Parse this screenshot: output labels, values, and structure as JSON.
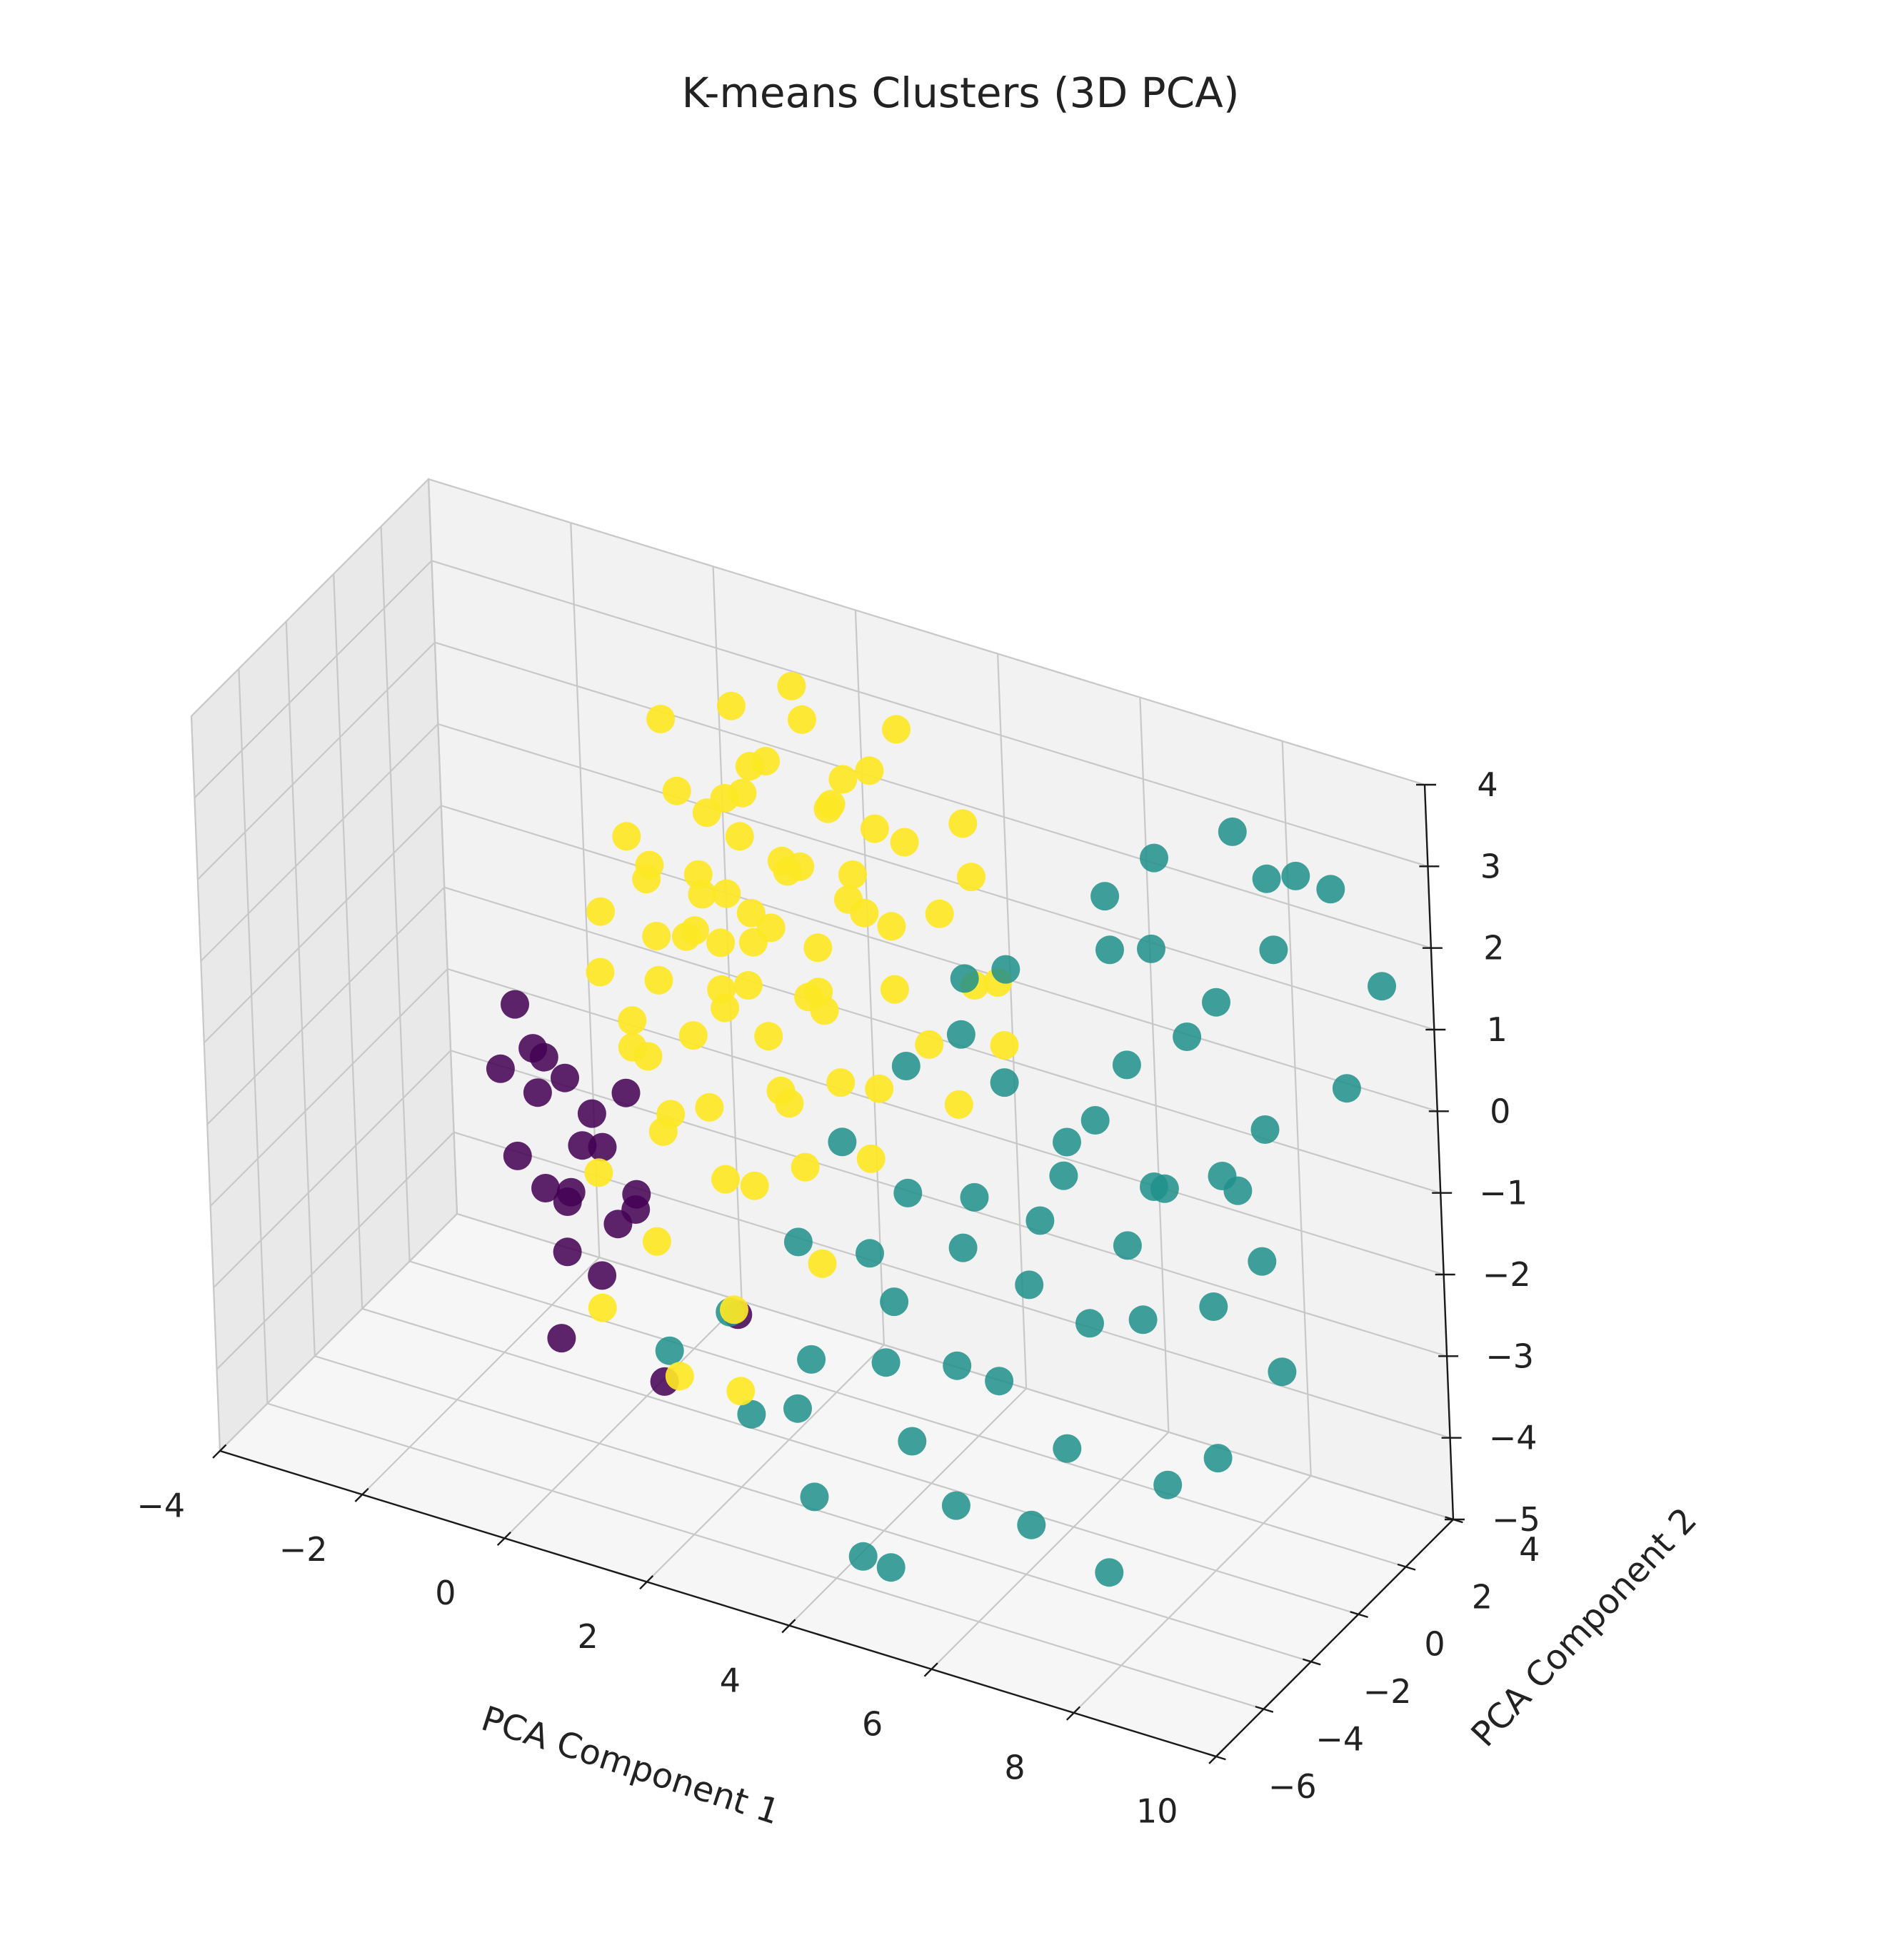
{
  "chart_data": {
    "type": "scatter",
    "projection": "3d",
    "title": "K-means Clusters (3D PCA)",
    "xlabel": "PCA Component 1",
    "ylabel": "PCA Component 2",
    "zlabel": "",
    "xlim": [
      -4,
      10
    ],
    "ylim": [
      -6,
      4
    ],
    "zlim": [
      -5,
      4
    ],
    "xticks": [
      -4,
      -2,
      0,
      2,
      4,
      6,
      8,
      10
    ],
    "yticks": [
      -6,
      -4,
      -2,
      0,
      2,
      4
    ],
    "zticks": [
      -5,
      -4,
      -3,
      -2,
      -1,
      0,
      1,
      2,
      3,
      4
    ],
    "grid": true,
    "legend": "none",
    "colormap": "viridis",
    "series": [
      {
        "color": "#440154",
        "points": [
          [
            -1.8,
            0.4,
            -0.8
          ],
          [
            -1.5,
            0.2,
            -1.2
          ],
          [
            -1.2,
            0.6,
            -1.6
          ],
          [
            -1.6,
            -0.3,
            -2.4
          ],
          [
            -1.0,
            0.1,
            -2.8
          ],
          [
            -0.8,
            0.5,
            -1.9
          ],
          [
            -1.3,
            0.8,
            -3.2
          ],
          [
            -0.5,
            -0.2,
            -3.6
          ],
          [
            -1.7,
            0.9,
            -2.0
          ],
          [
            -1.1,
            -0.5,
            -1.0
          ],
          [
            -0.6,
            0.3,
            -2.2
          ],
          [
            -1.4,
            1.0,
            -3.9
          ],
          [
            -0.3,
            0.7,
            -3.0
          ],
          [
            -0.9,
            -0.8,
            -4.3
          ],
          [
            -1.9,
            0.0,
            -1.5
          ],
          [
            -0.2,
            0.2,
            -1.4
          ],
          [
            -1.2,
            1.2,
            -2.6
          ],
          [
            0.4,
            -0.4,
            -4.6
          ],
          [
            -0.7,
            1.1,
            -3.4
          ],
          [
            1.2,
            0.4,
            -3.8
          ],
          [
            -1.5,
            0.5,
            -3.0
          ],
          [
            0.0,
            -0.1,
            -2.5
          ]
        ]
      },
      {
        "color": "#21918c",
        "points": [
          [
            6.6,
            2.6,
            2.6
          ],
          [
            7.8,
            2.4,
            3.3
          ],
          [
            8.4,
            2.0,
            3.0
          ],
          [
            6.3,
            1.4,
            2.4
          ],
          [
            9.2,
            2.3,
            3.0
          ],
          [
            8.6,
            1.6,
            2.3
          ],
          [
            9.7,
            2.8,
            1.8
          ],
          [
            7.6,
            0.8,
            1.2
          ],
          [
            8.8,
            0.4,
            0.5
          ],
          [
            9.6,
            1.5,
            0.9
          ],
          [
            5.4,
            -0.4,
            0.4
          ],
          [
            6.8,
            0.6,
            0.7
          ],
          [
            7.4,
            -0.2,
            -0.4
          ],
          [
            8.2,
            0.3,
            -0.2
          ],
          [
            9.0,
            -0.5,
            -0.8
          ],
          [
            4.6,
            0.2,
            0.6
          ],
          [
            5.8,
            0.9,
            -0.6
          ],
          [
            6.4,
            -1.0,
            -0.3
          ],
          [
            7.2,
            -0.8,
            -1.0
          ],
          [
            8.6,
            -1.4,
            -1.2
          ],
          [
            4.0,
            -0.5,
            -1.3
          ],
          [
            5.0,
            -1.2,
            -1.5
          ],
          [
            5.9,
            -0.6,
            -1.1
          ],
          [
            6.9,
            -1.6,
            -1.8
          ],
          [
            7.8,
            -2.0,
            -1.4
          ],
          [
            9.4,
            -1.0,
            -1.9
          ],
          [
            4.2,
            -1.8,
            -2.2
          ],
          [
            5.2,
            -2.2,
            -2.6
          ],
          [
            6.0,
            -2.8,
            -2.4
          ],
          [
            7.0,
            -3.0,
            -2.9
          ],
          [
            8.2,
            -2.4,
            -3.2
          ],
          [
            9.0,
            -2.6,
            -2.6
          ],
          [
            3.6,
            -1.0,
            -2.0
          ],
          [
            4.8,
            -3.0,
            -3.4
          ],
          [
            5.6,
            -3.6,
            -3.8
          ],
          [
            6.8,
            -4.0,
            -3.6
          ],
          [
            3.2,
            -2.4,
            -3.0
          ],
          [
            2.6,
            -3.2,
            -3.6
          ],
          [
            3.8,
            -4.2,
            -4.0
          ],
          [
            4.6,
            -4.6,
            -4.4
          ],
          [
            5.2,
            -5.2,
            -4.2
          ],
          [
            7.6,
            -3.2,
            -4.2
          ],
          [
            2.0,
            -2.2,
            -2.8
          ],
          [
            1.4,
            -3.0,
            -3.2
          ],
          [
            6.2,
            1.8,
            1.6
          ],
          [
            7.0,
            1.2,
            2.0
          ],
          [
            5.2,
            0.4,
            1.5
          ],
          [
            4.4,
            1.0,
            1.0
          ],
          [
            3.8,
            0.2,
            0.0
          ],
          [
            6.6,
            -0.2,
            0.2
          ],
          [
            7.9,
            -1.2,
            0.0
          ],
          [
            8.8,
            -0.8,
            0.1
          ],
          [
            3.2,
            -0.8,
            -0.8
          ],
          [
            2.8,
            -1.6,
            -1.9
          ],
          [
            5.4,
            -1.8,
            -0.6
          ],
          [
            6.2,
            -2.0,
            -1.4
          ],
          [
            4.4,
            -2.8,
            -2.6
          ],
          [
            3.4,
            -3.6,
            -3.2
          ],
          [
            8.0,
            0.9,
            1.7
          ],
          [
            8.5,
            2.9,
            2.8
          ]
        ]
      },
      {
        "color": "#fde725",
        "points": [
          [
            0.6,
            1.2,
            1.2
          ],
          [
            1.0,
            1.8,
            1.6
          ],
          [
            1.4,
            1.0,
            1.0
          ],
          [
            0.2,
            1.6,
            2.0
          ],
          [
            1.8,
            1.4,
            1.5
          ],
          [
            2.2,
            2.0,
            2.2
          ],
          [
            0.8,
            0.4,
            0.8
          ],
          [
            1.6,
            0.2,
            0.4
          ],
          [
            2.4,
            0.8,
            0.9
          ],
          [
            0.0,
            0.8,
            1.1
          ],
          [
            1.2,
            2.4,
            2.4
          ],
          [
            2.8,
            1.6,
            1.2
          ],
          [
            3.2,
            2.2,
            2.0
          ],
          [
            0.4,
            0.0,
            0.2
          ],
          [
            1.0,
            -0.4,
            -0.2
          ],
          [
            2.0,
            -0.2,
            0.0
          ],
          [
            2.6,
            0.4,
            0.3
          ],
          [
            3.4,
            1.0,
            0.6
          ],
          [
            3.8,
            1.8,
            1.4
          ],
          [
            -0.4,
            1.2,
            1.4
          ],
          [
            -0.6,
            0.6,
            0.6
          ],
          [
            0.2,
            -0.6,
            -0.5
          ],
          [
            1.4,
            -1.0,
            -0.8
          ],
          [
            2.4,
            -0.6,
            -0.6
          ],
          [
            3.0,
            -0.2,
            -0.3
          ],
          [
            4.0,
            0.6,
            0.2
          ],
          [
            4.4,
            1.4,
            0.8
          ],
          [
            0.8,
            -1.2,
            -1.2
          ],
          [
            1.8,
            -1.6,
            -1.4
          ],
          [
            2.8,
            -1.2,
            -1.1
          ],
          [
            3.6,
            -0.8,
            -0.9
          ],
          [
            0.0,
            -1.6,
            -1.8
          ],
          [
            1.0,
            -2.2,
            -2.2
          ],
          [
            2.2,
            -2.6,
            -2.6
          ],
          [
            3.2,
            -1.8,
            -2.0
          ],
          [
            0.4,
            -2.8,
            -3.0
          ],
          [
            1.6,
            -3.2,
            -3.4
          ],
          [
            2.6,
            -3.6,
            -3.2
          ],
          [
            -0.2,
            2.2,
            2.6
          ],
          [
            1.6,
            2.8,
            2.9
          ],
          [
            2.6,
            2.6,
            2.6
          ],
          [
            0.6,
            2.8,
            2.8
          ],
          [
            1.2,
            0.6,
            1.3
          ],
          [
            1.9,
            0.9,
            1.8
          ],
          [
            0.5,
            0.9,
            0.5
          ],
          [
            1.5,
            1.5,
            0.7
          ],
          [
            2.1,
            1.2,
            0.1
          ],
          [
            0.9,
            1.1,
            -0.1
          ],
          [
            1.3,
            0.0,
            0.9
          ],
          [
            2.9,
            0.9,
            1.9
          ],
          [
            3.6,
            0.4,
            1.6
          ],
          [
            0.1,
            0.3,
            -0.9
          ],
          [
            1.1,
            1.9,
            0.3
          ],
          [
            2.3,
            2.4,
            1.0
          ],
          [
            0.7,
            2.1,
            1.9
          ],
          [
            1.7,
            2.2,
            1.3
          ],
          [
            -0.3,
            1.8,
            0.9
          ],
          [
            0.3,
            2.5,
            1.5
          ],
          [
            2.5,
            1.8,
            2.7
          ],
          [
            3.1,
            1.3,
            2.4
          ],
          [
            4.2,
            2.0,
            1.9
          ],
          [
            4.8,
            1.2,
            1.0
          ],
          [
            3.9,
            2.6,
            2.3
          ],
          [
            1.4,
            3.0,
            3.2
          ],
          [
            2.9,
            2.9,
            3.1
          ],
          [
            0.0,
            0.0,
            -0.4
          ],
          [
            1.5,
            -0.5,
            0.3
          ],
          [
            2.7,
            -0.1,
            0.7
          ],
          [
            3.3,
            0.5,
            -0.5
          ],
          [
            1.9,
            0.5,
            -0.9
          ],
          [
            0.6,
            -0.3,
            -1.3
          ],
          [
            2.0,
            -1.0,
            -1.6
          ],
          [
            -0.5,
            0.2,
            0.0
          ],
          [
            -0.1,
            1.4,
            0.2
          ],
          [
            4.6,
            0.0,
            -0.2
          ],
          [
            5.0,
            0.8,
            0.4
          ],
          [
            0.9,
            2.6,
            2.2
          ],
          [
            2.0,
            2.7,
            2.0
          ],
          [
            1.2,
            1.4,
            2.3
          ],
          [
            0.4,
            1.9,
            0.7
          ]
        ]
      }
    ]
  }
}
